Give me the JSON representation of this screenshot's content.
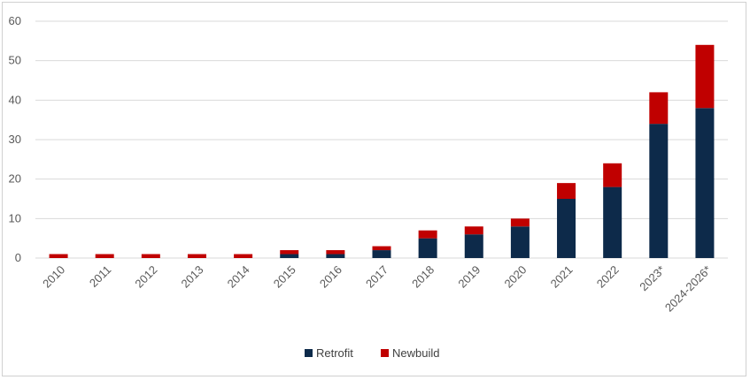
{
  "chart_data": {
    "type": "bar",
    "stacked": true,
    "title": "",
    "xlabel": "",
    "ylabel": "",
    "categories": [
      "2010",
      "2011",
      "2012",
      "2013",
      "2014",
      "2015",
      "2016",
      "2017",
      "2018",
      "2019",
      "2020",
      "2021",
      "2022",
      "2023*",
      "2024-2026*"
    ],
    "series": [
      {
        "name": "Retrofit",
        "color": "#0d2a4a",
        "values": [
          0,
          0,
          0,
          0,
          0,
          1,
          1,
          2,
          5,
          6,
          8,
          15,
          18,
          34,
          38
        ]
      },
      {
        "name": "Newbuild",
        "color": "#c00000",
        "values": [
          1,
          1,
          1,
          1,
          1,
          1,
          1,
          1,
          2,
          2,
          2,
          4,
          6,
          8,
          16
        ]
      }
    ],
    "ylim": [
      0,
      60
    ],
    "yticks": [
      0,
      10,
      20,
      30,
      40,
      50,
      60
    ],
    "grid": true,
    "legend_position": "bottom"
  }
}
